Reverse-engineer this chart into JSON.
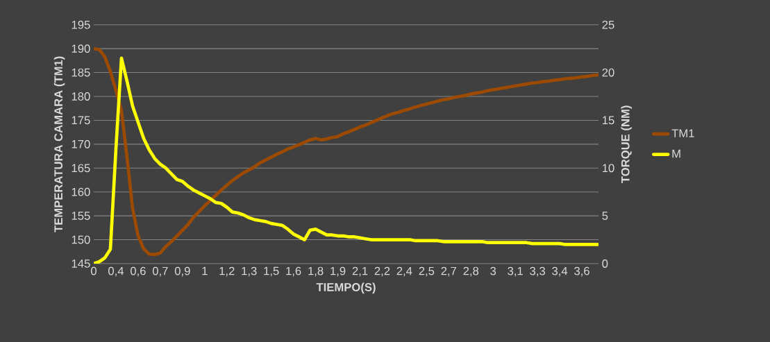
{
  "chart_data": {
    "type": "line",
    "xlabel": "TIEMPO(S)",
    "ylabel": "**TEMPERATURA CAMARA** (TM1)",
    "y2label": "TORQUE (NM)",
    "categories": [
      "0",
      null,
      null,
      null,
      "0,4",
      null,
      null,
      null,
      "0,6",
      null,
      null,
      null,
      "0,7",
      null,
      null,
      null,
      "0,9",
      null,
      null,
      null,
      "1",
      null,
      null,
      null,
      "1,2",
      null,
      null,
      null,
      "1,3",
      null,
      null,
      null,
      "1,5",
      null,
      null,
      null,
      "1,6",
      null,
      null,
      null,
      "1,8",
      null,
      null,
      null,
      "1,9",
      null,
      null,
      null,
      "2,1",
      null,
      null,
      null,
      "2,2",
      null,
      null,
      null,
      "2,4",
      null,
      null,
      null,
      "2,5",
      null,
      null,
      null,
      "2,7",
      null,
      null,
      null,
      "2,8",
      null,
      null,
      null,
      "3",
      null,
      null,
      null,
      "3,1",
      null,
      null,
      null,
      "3,3",
      null,
      null,
      null,
      "3,4",
      null,
      null,
      null,
      "3,6",
      null,
      null,
      null
    ],
    "series": [
      {
        "name": "TM1",
        "color": "#9c4a00",
        "values": [
          190,
          189.8,
          188.3,
          185.2,
          181.3,
          177,
          167.3,
          156.6,
          150.8,
          148.1,
          147,
          146.9,
          147.2,
          148.6,
          149.6,
          150.8,
          152,
          153.2,
          154.7,
          155.9,
          157.1,
          158.2,
          159.3,
          160.4,
          161.4,
          162.4,
          163.2,
          164,
          164.6,
          165.3,
          166.1,
          166.7,
          167.3,
          167.9,
          168.4,
          169,
          169.4,
          169.9,
          170.4,
          170.9,
          171.2,
          170.9,
          171.1,
          171.4,
          171.6,
          172.2,
          172.6,
          173.1,
          173.6,
          174,
          174.5,
          175,
          175.5,
          176,
          176.4,
          176.7,
          177.1,
          177.4,
          177.8,
          178.1,
          178.4,
          178.7,
          179,
          179.3,
          179.5,
          179.8,
          180,
          180.2,
          180.5,
          180.7,
          180.9,
          181.2,
          181.4,
          181.6,
          181.8,
          182,
          182.2,
          182.4,
          182.6,
          182.8,
          182.9,
          183.1,
          183.2,
          183.4,
          183.5,
          183.7,
          183.8,
          183.9,
          184.1,
          184.2,
          184.4,
          184.5
        ]
      },
      {
        "name": "M",
        "color": "#ffff00",
        "axis": "y2",
        "values": [
          0,
          0.2,
          0.6,
          1.5,
          12,
          21.5,
          19.1,
          16.5,
          14.8,
          13.1,
          11.9,
          11,
          10.4,
          10,
          9.4,
          8.8,
          8.6,
          8.1,
          7.7,
          7.4,
          7.1,
          6.8,
          6.4,
          6.3,
          5.9,
          5.4,
          5.3,
          5.1,
          4.8,
          4.6,
          4.5,
          4.4,
          4.2,
          4.1,
          4,
          3.6,
          3.1,
          2.8,
          2.5,
          3.5,
          3.6,
          3.3,
          3,
          3,
          2.9,
          2.9,
          2.8,
          2.8,
          2.7,
          2.6,
          2.5,
          2.5,
          2.5,
          2.5,
          2.5,
          2.5,
          2.5,
          2.5,
          2.4,
          2.4,
          2.4,
          2.4,
          2.4,
          2.3,
          2.3,
          2.3,
          2.3,
          2.3,
          2.3,
          2.3,
          2.3,
          2.2,
          2.2,
          2.2,
          2.2,
          2.2,
          2.2,
          2.2,
          2.2,
          2.1,
          2.1,
          2.1,
          2.1,
          2.1,
          2.1,
          2,
          2,
          2,
          2,
          2,
          2,
          2
        ]
      }
    ],
    "ylim": [
      145,
      195
    ],
    "yticks": [
      145,
      150,
      155,
      160,
      165,
      170,
      175,
      180,
      185,
      190,
      195
    ],
    "y2lim": [
      0,
      25
    ],
    "y2ticks": [
      0,
      5,
      10,
      15,
      20,
      25
    ],
    "grid": "y",
    "legend": "right"
  }
}
